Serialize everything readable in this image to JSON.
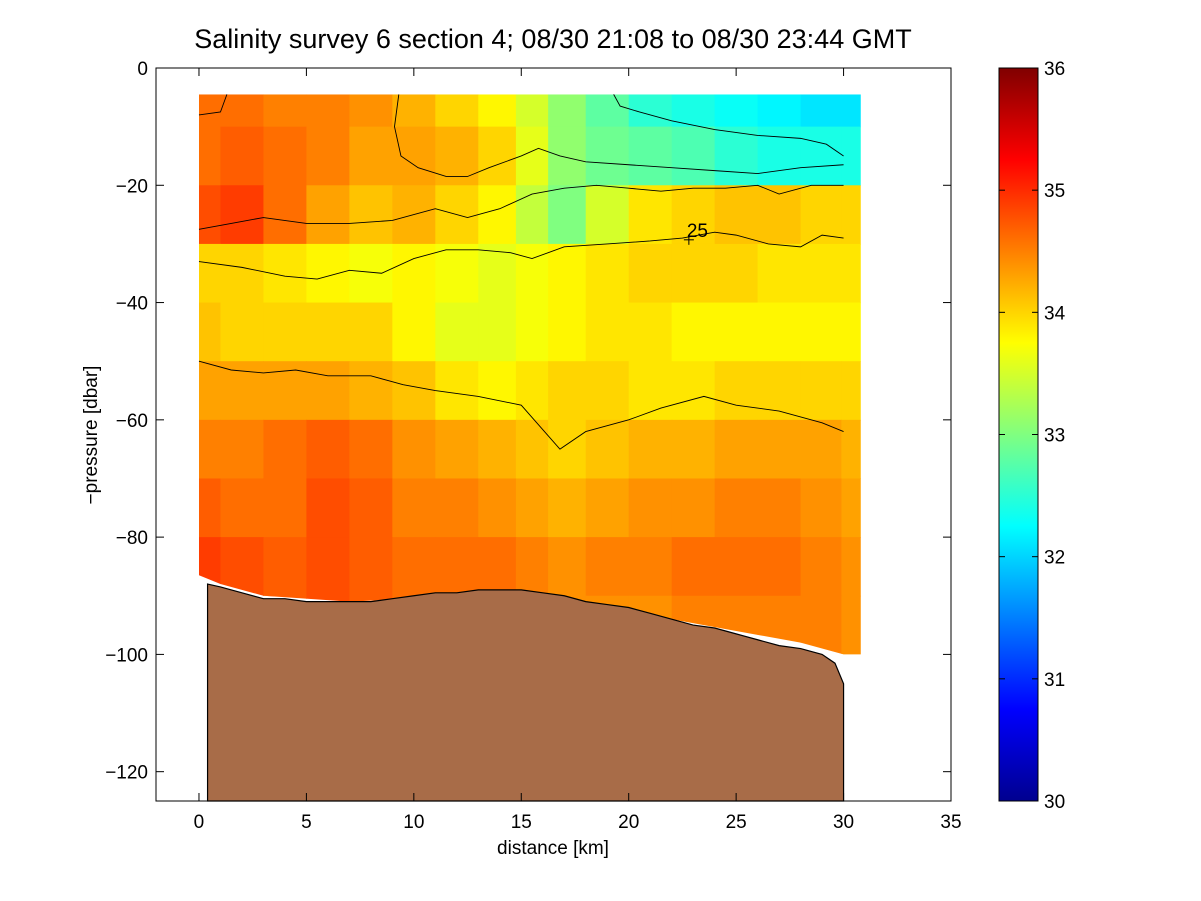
{
  "chart_data": {
    "type": "heatmap",
    "title": "Salinity survey 6 section 4; 08/30 21:08 to 08/30 23:44 GMT",
    "xlabel": "distance [km]",
    "ylabel": "−pressure [dbar]",
    "xlim": [
      -2,
      35
    ],
    "ylim": [
      -125,
      0
    ],
    "xticks": [
      0,
      5,
      10,
      15,
      20,
      25,
      30,
      35
    ],
    "xtick_labels": [
      "0",
      "5",
      "10",
      "15",
      "20",
      "25",
      "30",
      "35"
    ],
    "yticks": [
      0,
      -20,
      -40,
      -60,
      -80,
      -100,
      -120
    ],
    "ytick_labels": [
      "0",
      "−20",
      "−40",
      "−60",
      "−80",
      "−100",
      "−120"
    ],
    "colorbar": {
      "range": [
        30,
        36
      ],
      "ticks": [
        30,
        31,
        32,
        33,
        34,
        35,
        36
      ],
      "tick_labels": [
        "30",
        "31",
        "32",
        "33",
        "34",
        "35",
        "36"
      ],
      "colormap": "jet"
    },
    "data_extent": {
      "x_range": [
        0,
        30.8
      ],
      "top_depth": -4.5,
      "bottom_outline": [
        [
          0,
          -86.5
        ],
        [
          1,
          -88
        ],
        [
          3,
          -90
        ],
        [
          7,
          -91
        ],
        [
          10,
          -90.5
        ],
        [
          13,
          -89
        ],
        [
          15,
          -89.5
        ],
        [
          18,
          -91
        ],
        [
          20,
          -92.5
        ],
        [
          22,
          -94
        ],
        [
          25,
          -96
        ],
        [
          28,
          -98
        ],
        [
          30,
          -100
        ],
        [
          30.8,
          -100
        ]
      ]
    },
    "salinity_profiles": {
      "x": [
        0,
        2,
        4,
        6,
        8,
        10,
        12,
        14,
        15.5,
        17,
        19,
        21,
        23,
        25,
        27,
        29,
        30.8
      ],
      "depths": [
        -5,
        -15,
        -25,
        -35,
        -45,
        -55,
        -65,
        -75,
        -85,
        -95
      ],
      "values": [
        [
          34.6,
          34.6,
          34.5,
          34.5,
          34.4,
          34.2,
          34.0,
          33.8,
          33.5,
          33.1,
          32.8,
          32.5,
          32.4,
          32.3,
          32.2,
          32.1,
          32.1
        ],
        [
          34.6,
          34.7,
          34.6,
          34.5,
          34.3,
          34.3,
          34.2,
          34.0,
          33.6,
          33.1,
          32.9,
          32.8,
          32.7,
          32.5,
          32.4,
          32.4,
          32.4
        ],
        [
          34.8,
          34.9,
          34.6,
          34.3,
          34.1,
          34.2,
          34.0,
          33.8,
          33.4,
          33.0,
          33.5,
          33.9,
          34.0,
          34.1,
          34.1,
          34.0,
          34.0
        ],
        [
          34.0,
          34.0,
          33.9,
          33.8,
          33.7,
          33.8,
          33.7,
          33.6,
          33.7,
          33.8,
          33.9,
          34.0,
          34.0,
          34.0,
          33.9,
          33.9,
          33.9
        ],
        [
          34.1,
          34.0,
          34.0,
          34.0,
          34.0,
          33.8,
          33.6,
          33.6,
          33.7,
          33.8,
          33.9,
          33.9,
          33.8,
          33.8,
          33.8,
          33.8,
          33.8
        ],
        [
          34.3,
          34.3,
          34.3,
          34.3,
          34.2,
          34.1,
          33.9,
          33.8,
          33.9,
          34.0,
          34.0,
          33.9,
          33.9,
          34.0,
          34.0,
          34.0,
          34.0
        ],
        [
          34.5,
          34.5,
          34.6,
          34.7,
          34.6,
          34.4,
          34.3,
          34.2,
          34.1,
          34.0,
          34.1,
          34.2,
          34.2,
          34.3,
          34.3,
          34.3,
          34.2
        ],
        [
          34.7,
          34.6,
          34.6,
          34.8,
          34.7,
          34.5,
          34.5,
          34.4,
          34.3,
          34.2,
          34.3,
          34.4,
          34.4,
          34.5,
          34.5,
          34.4,
          34.3
        ],
        [
          34.9,
          34.8,
          34.7,
          34.8,
          34.7,
          34.6,
          34.6,
          34.6,
          34.5,
          34.4,
          34.5,
          34.5,
          34.6,
          34.6,
          34.6,
          34.5,
          34.4
        ],
        [
          34.9,
          34.8,
          34.7,
          34.8,
          34.7,
          34.6,
          34.6,
          34.6,
          34.5,
          34.4,
          34.4,
          34.4,
          34.5,
          34.5,
          34.5,
          34.5,
          34.4
        ]
      ]
    },
    "contours": [
      {
        "x": [
          0,
          1,
          1.3
        ],
        "y": [
          -8,
          -7.5,
          -4.5
        ]
      },
      {
        "x": [
          9.3,
          9.1,
          9.4,
          10.2,
          11.5,
          12.5,
          13.5,
          15,
          15.8,
          16.8,
          18,
          20,
          22,
          24,
          26,
          28,
          30
        ],
        "y": [
          -4.5,
          -10,
          -15,
          -17,
          -18.5,
          -18.5,
          -17,
          -15,
          -13.7,
          -15,
          -16,
          -16.5,
          -17,
          -17.5,
          -18,
          -17,
          -16.5
        ]
      },
      {
        "x": [
          19.3,
          19.6,
          20.5,
          22,
          24,
          26,
          28,
          29.2,
          30
        ],
        "y": [
          -4.5,
          -6.5,
          -7.5,
          -9,
          -10.5,
          -11.5,
          -12,
          -13,
          -15
        ]
      },
      {
        "x": [
          0,
          1.5,
          3,
          5,
          7,
          9,
          11,
          12.5,
          14,
          15.5,
          17,
          18.5,
          20,
          21.5,
          23,
          24.5,
          26,
          27,
          28.5,
          30
        ],
        "y": [
          -27.5,
          -26.5,
          -25.5,
          -26.5,
          -26.5,
          -26,
          -24,
          -25.5,
          -24,
          -21.5,
          -20.5,
          -20,
          -20.5,
          -21,
          -20.5,
          -20.5,
          -20,
          -21.5,
          -20,
          -20
        ]
      },
      {
        "x": [
          0,
          2,
          4,
          5.5,
          7,
          8.5,
          10,
          11.5,
          13,
          14.5,
          15.5,
          17,
          19,
          21,
          22.5,
          24,
          25,
          26.5,
          28,
          29,
          30
        ],
        "y": [
          -33,
          -34,
          -35.5,
          -36,
          -34.5,
          -35,
          -32.5,
          -31,
          -31,
          -31.5,
          -32.5,
          -30.5,
          -30,
          -29.5,
          -29,
          -28,
          -28.5,
          -30,
          -30.5,
          -28.5,
          -29
        ]
      },
      {
        "x": [
          0,
          1.5,
          3,
          4.5,
          6,
          8,
          9.5,
          11,
          13,
          15,
          16.8,
          18,
          20,
          21.5,
          23.5,
          25,
          27,
          29,
          30
        ],
        "y": [
          -50,
          -51.5,
          -52,
          -51.5,
          -52.5,
          -52.5,
          -54,
          -55,
          -56,
          -57.5,
          -65,
          -62,
          -60,
          -58,
          -56,
          -57.5,
          -58.5,
          -60.5,
          -62
        ]
      }
    ],
    "contour_label": {
      "text": "25",
      "x": 22.8,
      "y": -29.3
    },
    "seafloor": {
      "color": "#a86c48",
      "outline": [
        [
          0.4,
          -88
        ],
        [
          1,
          -88.5
        ],
        [
          2,
          -89.5
        ],
        [
          3,
          -90.5
        ],
        [
          4,
          -90.5
        ],
        [
          5,
          -91
        ],
        [
          6,
          -91
        ],
        [
          7,
          -91
        ],
        [
          8,
          -91
        ],
        [
          9,
          -90.5
        ],
        [
          10,
          -90
        ],
        [
          11,
          -89.5
        ],
        [
          12,
          -89.5
        ],
        [
          13,
          -89
        ],
        [
          14,
          -89
        ],
        [
          15,
          -89
        ],
        [
          16,
          -89.5
        ],
        [
          17,
          -90
        ],
        [
          18,
          -91
        ],
        [
          19,
          -91.5
        ],
        [
          20,
          -92
        ],
        [
          21,
          -93
        ],
        [
          22,
          -94
        ],
        [
          23,
          -95
        ],
        [
          24,
          -95.5
        ],
        [
          25,
          -96.5
        ],
        [
          26,
          -97.5
        ],
        [
          27,
          -98.5
        ],
        [
          28,
          -99
        ],
        [
          29,
          -100
        ],
        [
          29.6,
          -101.5
        ],
        [
          30,
          -105
        ],
        [
          30,
          -125
        ]
      ]
    }
  }
}
